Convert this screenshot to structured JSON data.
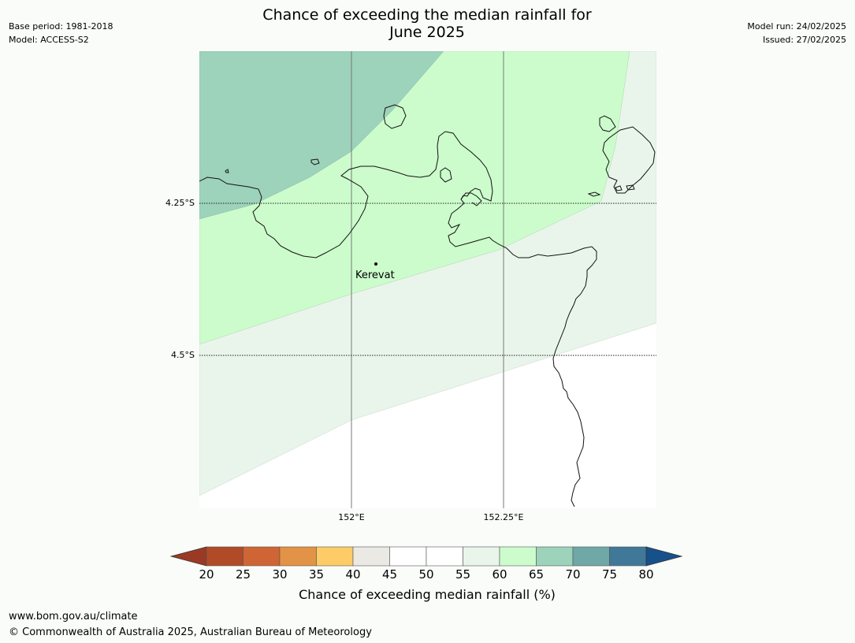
{
  "header": {
    "title_line1": "Chance of exceeding the median rainfall for",
    "title_line2": "June 2025",
    "base_period": "Base period: 1981-2018",
    "model": "Model: ACCESS-S2",
    "model_run": "Model run: 24/02/2025",
    "issued": "Issued: 27/02/2025"
  },
  "map": {
    "lat_labels": [
      "4.25°S",
      "4.5°S"
    ],
    "lon_labels": [
      "152°E",
      "152.25°E"
    ],
    "place_label": "Kerevat",
    "zones": [
      {
        "name": "65-70",
        "color": "#9dd2bb"
      },
      {
        "name": "60-65",
        "color": "#ccfccc"
      },
      {
        "name": "55-60",
        "color": "#e9f5ea"
      },
      {
        "name": "50-55",
        "color": "#ffffff"
      }
    ]
  },
  "colorbar": {
    "ticks": [
      "20",
      "25",
      "30",
      "35",
      "40",
      "45",
      "50",
      "55",
      "60",
      "65",
      "70",
      "75",
      "80"
    ],
    "colors": [
      "#b14a27",
      "#cf6534",
      "#e39346",
      "#fdcc66",
      "#ebe9e4",
      "#ffffff",
      "#ffffff",
      "#e9f5ea",
      "#ccfccc",
      "#9dd2bb",
      "#6fa8a6",
      "#3f7899"
    ],
    "under_color": "#9b3a24",
    "over_color": "#16518c",
    "label": "Chance of exceeding median rainfall (%)"
  },
  "footer": {
    "url": "www.bom.gov.au/climate",
    "copyright": "© Commonwealth of Australia 2025, Australian Bureau of Meteorology"
  }
}
